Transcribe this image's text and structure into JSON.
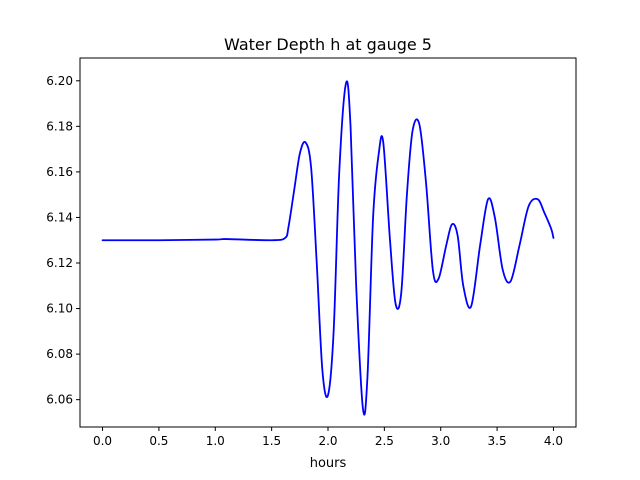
{
  "chart_data": {
    "type": "line",
    "title": "Water Depth h at gauge 5",
    "xlabel": "hours",
    "ylabel": "",
    "xlim": [
      -0.2,
      4.2
    ],
    "ylim": [
      6.048,
      6.21
    ],
    "xticks": [
      0.0,
      0.5,
      1.0,
      1.5,
      2.0,
      2.5,
      3.0,
      3.5,
      4.0
    ],
    "xtick_labels": [
      "0.0",
      "0.5",
      "1.0",
      "1.5",
      "2.0",
      "2.5",
      "3.0",
      "3.5",
      "4.0"
    ],
    "yticks": [
      6.06,
      6.08,
      6.1,
      6.12,
      6.14,
      6.16,
      6.18,
      6.2
    ],
    "ytick_labels": [
      "6.06",
      "6.08",
      "6.10",
      "6.12",
      "6.14",
      "6.16",
      "6.18",
      "6.20"
    ],
    "grid": false,
    "series": [
      {
        "color": "#0000ff",
        "x": [
          0.0,
          0.5,
          1.0,
          1.1,
          1.5,
          1.62,
          1.65,
          1.7,
          1.75,
          1.8,
          1.85,
          1.9,
          1.95,
          2.0,
          2.05,
          2.1,
          2.16,
          2.2,
          2.25,
          2.31,
          2.35,
          2.4,
          2.45,
          2.49,
          2.55,
          2.6,
          2.65,
          2.7,
          2.75,
          2.81,
          2.87,
          2.93,
          2.98,
          3.05,
          3.1,
          3.15,
          3.2,
          3.27,
          3.35,
          3.42,
          3.48,
          3.55,
          3.62,
          3.7,
          3.78,
          3.86,
          3.92,
          3.98,
          4.0
        ],
        "y": [
          6.13,
          6.13,
          6.1303,
          6.1305,
          6.13,
          6.131,
          6.136,
          6.152,
          6.168,
          6.173,
          6.162,
          6.12,
          6.073,
          6.062,
          6.09,
          6.16,
          6.199,
          6.18,
          6.11,
          6.056,
          6.07,
          6.14,
          6.168,
          6.173,
          6.13,
          6.102,
          6.107,
          6.15,
          6.178,
          6.181,
          6.155,
          6.117,
          6.113,
          6.128,
          6.137,
          6.132,
          6.11,
          6.101,
          6.128,
          6.148,
          6.14,
          6.117,
          6.112,
          6.128,
          6.145,
          6.148,
          6.142,
          6.135,
          6.131
        ]
      }
    ]
  }
}
